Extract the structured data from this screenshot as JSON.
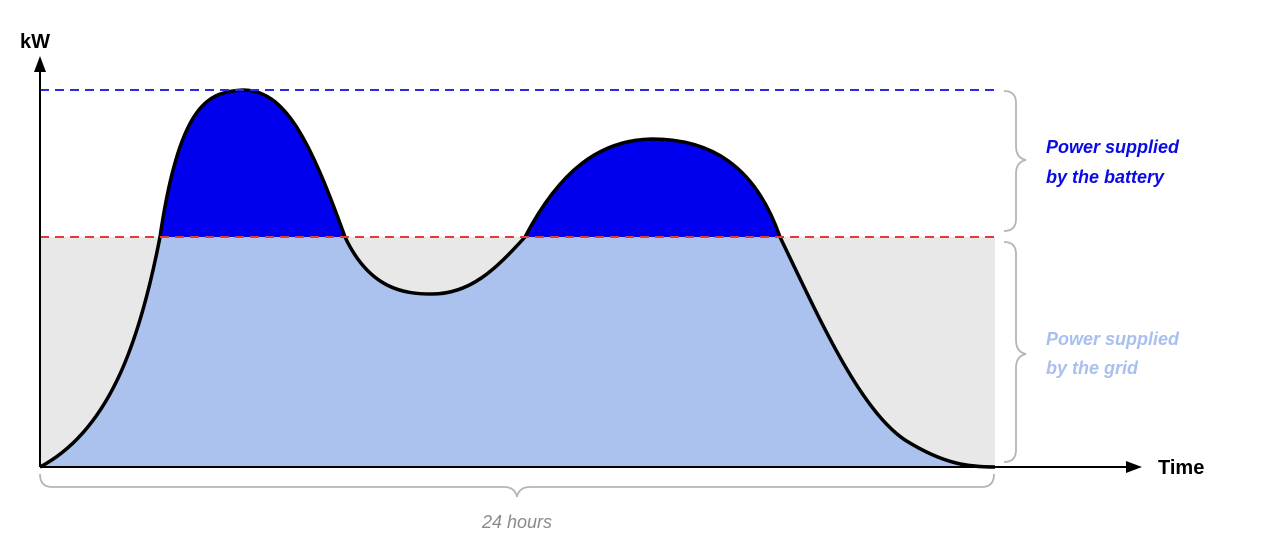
{
  "diagram": {
    "y_axis_label": "kW",
    "x_axis_label": "Time",
    "duration_label": "24 hours",
    "battery_label": {
      "line1": "Power supplied",
      "line2": "by the battery",
      "color": "#0a0ae6"
    },
    "grid_label": {
      "line1": "Power supplied",
      "line2": "by the grid",
      "color": "#a9bfee"
    },
    "colors": {
      "battery_fill": "#0000ee",
      "grid_fill": "#abc1ee",
      "grid_band": "#e8e8e8",
      "peak_line": "#2a2ae8",
      "threshold_line": "#e23a3a",
      "curve": "#000000",
      "brace": "#b5b5b5"
    }
  }
}
